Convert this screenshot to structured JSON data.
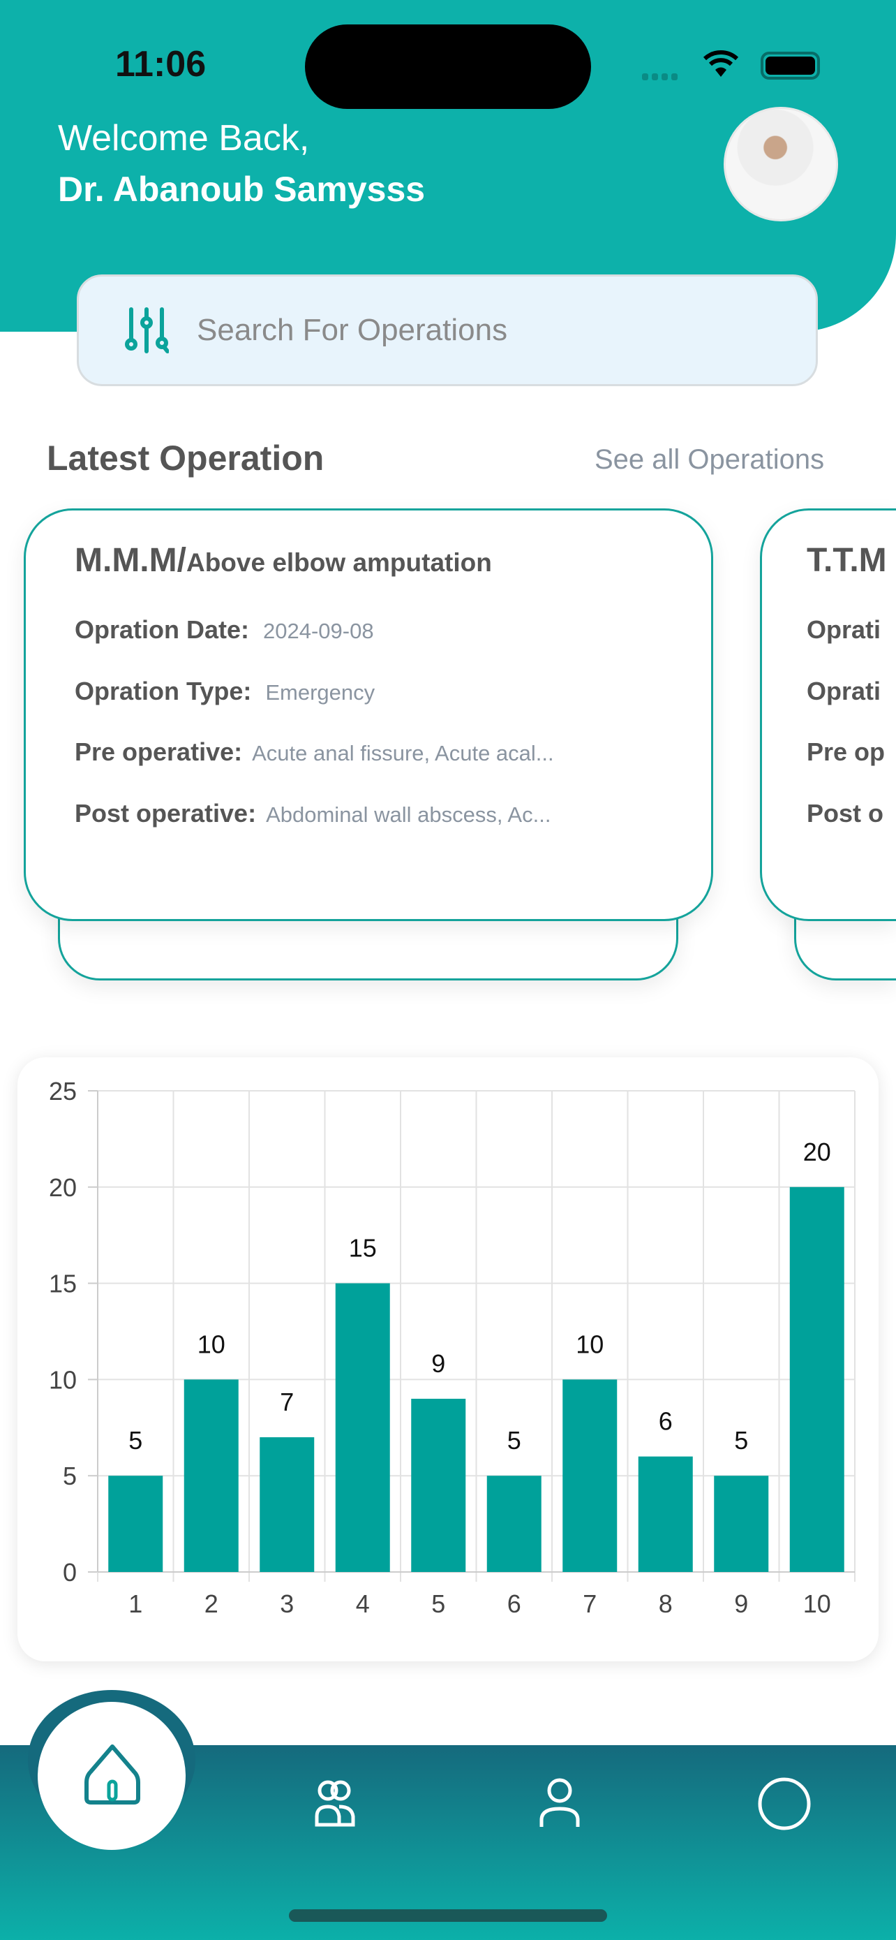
{
  "status_bar": {
    "time": "11:06"
  },
  "header": {
    "greeting": "Welcome Back,",
    "doctor_name": "Dr. Abanoub Samysss"
  },
  "search": {
    "placeholder": "Search For Operations"
  },
  "section": {
    "title": "Latest Operation",
    "see_all": "See all Operations"
  },
  "operations": [
    {
      "code": "M.M.M/",
      "name": "Above elbow amputation",
      "date_label": "Opration Date:",
      "date": "2024-09-08",
      "type_label": "Opration Type:",
      "type": "Emergency",
      "pre_label": "Pre operative:",
      "pre": "Acute anal fissure, Acute acal...",
      "post_label": "Post operative:",
      "post": "Abdominal wall abscess, Ac..."
    },
    {
      "code": "T.T.M",
      "date_label": "Oprati",
      "type_label": "Oprati",
      "pre_label": "Pre op",
      "post_label": "Post o"
    }
  ],
  "chart_data": {
    "type": "bar",
    "categories": [
      "1",
      "2",
      "3",
      "4",
      "5",
      "6",
      "7",
      "8",
      "9",
      "10"
    ],
    "values": [
      5,
      10,
      7,
      15,
      9,
      5,
      10,
      6,
      5,
      20
    ],
    "yticks": [
      "0",
      "5",
      "10",
      "15",
      "20",
      "25"
    ],
    "ylim": [
      0,
      25
    ],
    "grid": true,
    "color": "#00a19a"
  },
  "colors": {
    "primary": "#0db1aa",
    "nav_top": "#156a7d"
  }
}
